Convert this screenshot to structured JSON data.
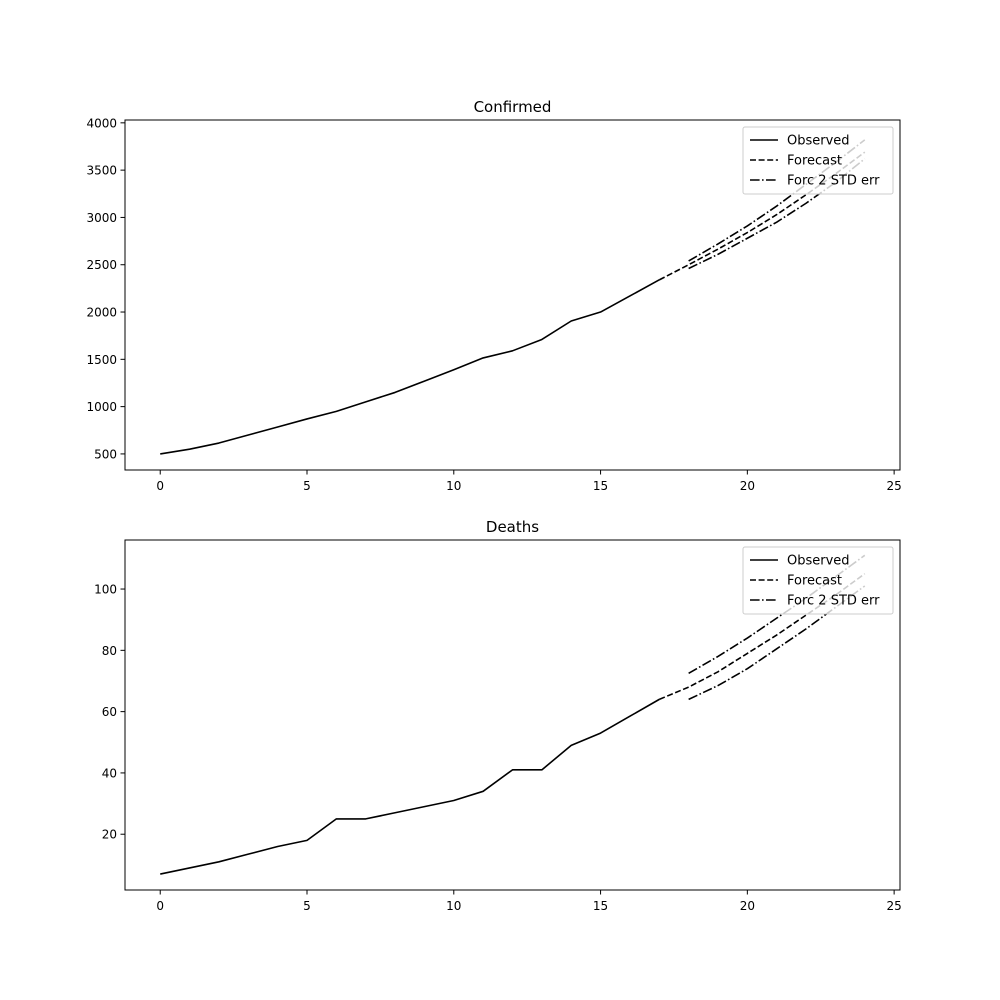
{
  "chart_data": [
    {
      "type": "line",
      "title": "Confirmed",
      "xlabel": "",
      "ylabel": "",
      "xlim": [
        -1.2,
        25.2
      ],
      "ylim": [
        330,
        4030
      ],
      "xticks": [
        0,
        5,
        10,
        15,
        20,
        25
      ],
      "yticks": [
        500,
        1000,
        1500,
        2000,
        2500,
        3000,
        3500,
        4000
      ],
      "legend_position": "top-right",
      "legend": [
        "Observed",
        "Forecast",
        "Forc 2 STD err"
      ],
      "series": [
        {
          "name": "Observed",
          "style": "solid",
          "x": [
            0,
            1,
            2,
            3,
            4,
            5,
            6,
            7,
            8,
            9,
            10,
            11,
            12,
            13,
            14,
            15,
            16,
            17
          ],
          "values": [
            500,
            550,
            615,
            700,
            785,
            870,
            950,
            1050,
            1150,
            1270,
            1390,
            1515,
            1590,
            1710,
            1905,
            2000,
            2170,
            2340
          ]
        },
        {
          "name": "Forecast",
          "style": "dashed",
          "x": [
            17,
            18,
            19,
            20,
            21,
            22,
            23,
            24
          ],
          "values": [
            2340,
            2500,
            2665,
            2840,
            3030,
            3240,
            3460,
            3690
          ]
        },
        {
          "name": "Forc 2 STD err",
          "style": "dashdot",
          "x": [
            18,
            19,
            20,
            21,
            22,
            23,
            24
          ],
          "values": [
            2540,
            2720,
            2910,
            3120,
            3350,
            3580,
            3820
          ]
        },
        {
          "name": "Forc 2 STD err",
          "style": "dashdot",
          "x": [
            18,
            19,
            20,
            21,
            22,
            23,
            24
          ],
          "values": [
            2460,
            2610,
            2780,
            2950,
            3150,
            3370,
            3620
          ]
        }
      ]
    },
    {
      "type": "line",
      "title": "Deaths",
      "xlabel": "",
      "ylabel": "",
      "xlim": [
        -1.2,
        25.2
      ],
      "ylim": [
        1.8,
        116
      ],
      "xticks": [
        0,
        5,
        10,
        15,
        20,
        25
      ],
      "yticks": [
        20,
        40,
        60,
        80,
        100
      ],
      "legend_position": "top-right",
      "legend": [
        "Observed",
        "Forecast",
        "Forc 2 STD err"
      ],
      "series": [
        {
          "name": "Observed",
          "style": "solid",
          "x": [
            0,
            1,
            2,
            3,
            4,
            5,
            6,
            7,
            8,
            9,
            10,
            11,
            12,
            13,
            14,
            15,
            16,
            17
          ],
          "values": [
            7,
            9,
            11,
            13.5,
            16,
            18,
            25,
            25,
            27,
            29,
            31,
            34,
            41,
            41,
            49,
            53,
            58.5,
            64
          ]
        },
        {
          "name": "Forecast",
          "style": "dashed",
          "x": [
            17,
            18,
            19,
            20,
            21,
            22,
            23,
            24
          ],
          "values": [
            64,
            68,
            73,
            79,
            85,
            91.5,
            98,
            105
          ]
        },
        {
          "name": "Forc 2 STD err",
          "style": "dashdot",
          "x": [
            18,
            19,
            20,
            21,
            22,
            23,
            24
          ],
          "values": [
            72.5,
            78,
            84,
            90.5,
            97,
            104,
            111
          ]
        },
        {
          "name": "Forc 2 STD err",
          "style": "dashdot",
          "x": [
            18,
            19,
            20,
            21,
            22,
            23,
            24
          ],
          "values": [
            64,
            68.5,
            74,
            80.5,
            87,
            94,
            101
          ]
        }
      ]
    }
  ]
}
